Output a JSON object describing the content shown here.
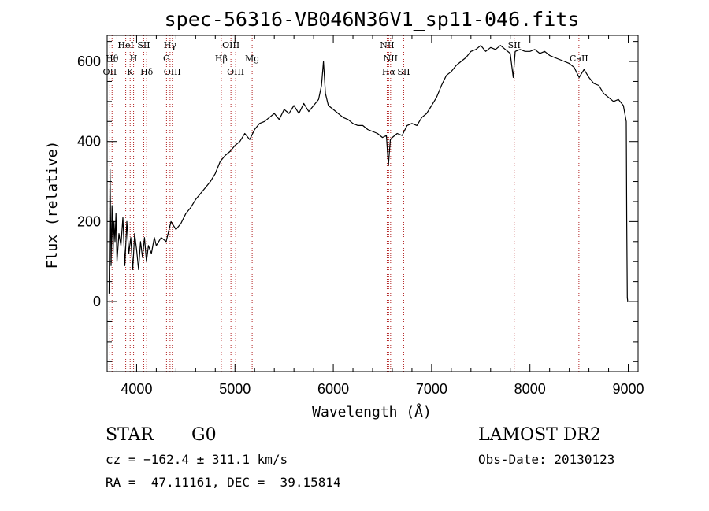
{
  "chart_data": {
    "type": "line",
    "title": "spec-56316-VB046N36V1_sp11-046.fits",
    "xlabel": "Wavelength (Å)",
    "ylabel": "Flux (relative)",
    "xlim": [
      3700,
      9100
    ],
    "ylim": [
      -175,
      665
    ],
    "x_ticks": [
      4000,
      5000,
      6000,
      7000,
      8000,
      9000
    ],
    "y_ticks": [
      0,
      200,
      400,
      600
    ],
    "x_tick_labels": [
      "4000",
      "5000",
      "6000",
      "7000",
      "8000",
      "9000"
    ],
    "y_tick_labels": [
      "0",
      "200",
      "400",
      "600"
    ],
    "x_minor_step": 200,
    "y_minor_step": 50,
    "grid": false,
    "line_color": "#000000",
    "marker_color": "#b22222",
    "series": [
      {
        "points": [
          [
            3720,
            20
          ],
          [
            3730,
            330
          ],
          [
            3740,
            90
          ],
          [
            3750,
            240
          ],
          [
            3760,
            120
          ],
          [
            3770,
            200
          ],
          [
            3780,
            150
          ],
          [
            3790,
            220
          ],
          [
            3800,
            100
          ],
          [
            3820,
            170
          ],
          [
            3840,
            140
          ],
          [
            3860,
            210
          ],
          [
            3880,
            90
          ],
          [
            3900,
            200
          ],
          [
            3920,
            120
          ],
          [
            3940,
            160
          ],
          [
            3960,
            80
          ],
          [
            3980,
            170
          ],
          [
            4000,
            130
          ],
          [
            4020,
            80
          ],
          [
            4040,
            150
          ],
          [
            4060,
            110
          ],
          [
            4080,
            160
          ],
          [
            4100,
            100
          ],
          [
            4120,
            140
          ],
          [
            4150,
            120
          ],
          [
            4180,
            160
          ],
          [
            4200,
            140
          ],
          [
            4250,
            160
          ],
          [
            4300,
            150
          ],
          [
            4350,
            200
          ],
          [
            4400,
            180
          ],
          [
            4450,
            195
          ],
          [
            4500,
            220
          ],
          [
            4550,
            235
          ],
          [
            4600,
            255
          ],
          [
            4650,
            270
          ],
          [
            4700,
            285
          ],
          [
            4750,
            300
          ],
          [
            4800,
            320
          ],
          [
            4850,
            350
          ],
          [
            4900,
            365
          ],
          [
            4950,
            375
          ],
          [
            5000,
            390
          ],
          [
            5050,
            400
          ],
          [
            5100,
            420
          ],
          [
            5150,
            405
          ],
          [
            5200,
            430
          ],
          [
            5250,
            445
          ],
          [
            5300,
            450
          ],
          [
            5350,
            460
          ],
          [
            5400,
            470
          ],
          [
            5450,
            455
          ],
          [
            5500,
            480
          ],
          [
            5550,
            470
          ],
          [
            5600,
            490
          ],
          [
            5650,
            470
          ],
          [
            5700,
            495
          ],
          [
            5750,
            475
          ],
          [
            5800,
            490
          ],
          [
            5850,
            505
          ],
          [
            5880,
            540
          ],
          [
            5900,
            600
          ],
          [
            5920,
            520
          ],
          [
            5950,
            490
          ],
          [
            6000,
            480
          ],
          [
            6050,
            470
          ],
          [
            6100,
            460
          ],
          [
            6150,
            455
          ],
          [
            6200,
            445
          ],
          [
            6250,
            440
          ],
          [
            6300,
            440
          ],
          [
            6350,
            430
          ],
          [
            6400,
            425
          ],
          [
            6450,
            420
          ],
          [
            6500,
            410
          ],
          [
            6540,
            415
          ],
          [
            6560,
            340
          ],
          [
            6580,
            405
          ],
          [
            6600,
            410
          ],
          [
            6650,
            420
          ],
          [
            6700,
            415
          ],
          [
            6750,
            440
          ],
          [
            6800,
            445
          ],
          [
            6850,
            440
          ],
          [
            6900,
            460
          ],
          [
            6950,
            470
          ],
          [
            7000,
            490
          ],
          [
            7050,
            510
          ],
          [
            7100,
            540
          ],
          [
            7150,
            565
          ],
          [
            7200,
            575
          ],
          [
            7250,
            590
          ],
          [
            7300,
            600
          ],
          [
            7350,
            610
          ],
          [
            7400,
            625
          ],
          [
            7450,
            630
          ],
          [
            7500,
            640
          ],
          [
            7550,
            625
          ],
          [
            7600,
            635
          ],
          [
            7650,
            630
          ],
          [
            7700,
            640
          ],
          [
            7750,
            630
          ],
          [
            7800,
            620
          ],
          [
            7830,
            560
          ],
          [
            7850,
            625
          ],
          [
            7900,
            630
          ],
          [
            7950,
            625
          ],
          [
            8000,
            625
          ],
          [
            8050,
            630
          ],
          [
            8100,
            620
          ],
          [
            8150,
            625
          ],
          [
            8200,
            615
          ],
          [
            8250,
            610
          ],
          [
            8300,
            605
          ],
          [
            8350,
            600
          ],
          [
            8400,
            595
          ],
          [
            8450,
            585
          ],
          [
            8500,
            560
          ],
          [
            8550,
            580
          ],
          [
            8600,
            560
          ],
          [
            8650,
            545
          ],
          [
            8700,
            540
          ],
          [
            8750,
            520
          ],
          [
            8800,
            510
          ],
          [
            8850,
            500
          ],
          [
            8900,
            505
          ],
          [
            8950,
            490
          ],
          [
            8980,
            450
          ],
          [
            8985,
            200
          ],
          [
            8990,
            10
          ],
          [
            8995,
            0
          ]
        ]
      }
    ],
    "line_markers": [
      {
        "x": 3727,
        "label": "OII",
        "row": 2
      },
      {
        "x": 3750,
        "label": "Hθ",
        "row": 1
      },
      {
        "x": 3889,
        "label": "HeI",
        "row": 0
      },
      {
        "x": 3934,
        "label": "K",
        "row": 2
      },
      {
        "x": 3969,
        "label": "H",
        "row": 1
      },
      {
        "x": 4072,
        "label": "SII",
        "row": 0
      },
      {
        "x": 4102,
        "label": "Hδ",
        "row": 2
      },
      {
        "x": 4304,
        "label": "G",
        "row": 1
      },
      {
        "x": 4340,
        "label": "Hγ",
        "row": 0
      },
      {
        "x": 4363,
        "label": "OIII",
        "row": 2
      },
      {
        "x": 4861,
        "label": "Hβ",
        "row": 1
      },
      {
        "x": 4959,
        "label": "OIII",
        "row": 0
      },
      {
        "x": 5007,
        "label": "OIII",
        "row": 2
      },
      {
        "x": 5175,
        "label": "Mg",
        "row": 1
      },
      {
        "x": 6548,
        "label": "NII",
        "row": 0
      },
      {
        "x": 6563,
        "label": "Hα",
        "row": 2
      },
      {
        "x": 6583,
        "label": "NII",
        "row": 1
      },
      {
        "x": 6716,
        "label": "SII",
        "row": 2
      },
      {
        "x": 7840,
        "label": "SII",
        "row": 0
      },
      {
        "x": 8498,
        "label": "CaII",
        "row": 1
      }
    ]
  },
  "info": {
    "object_class": "STAR",
    "subclass": "G0",
    "survey": "LAMOST DR2",
    "redshift": "cz = −162.4 ± 311.1 km/s",
    "obs_date": "Obs-Date: 20130123",
    "coordinates": "RA =  47.11161, DEC =  39.15814"
  }
}
